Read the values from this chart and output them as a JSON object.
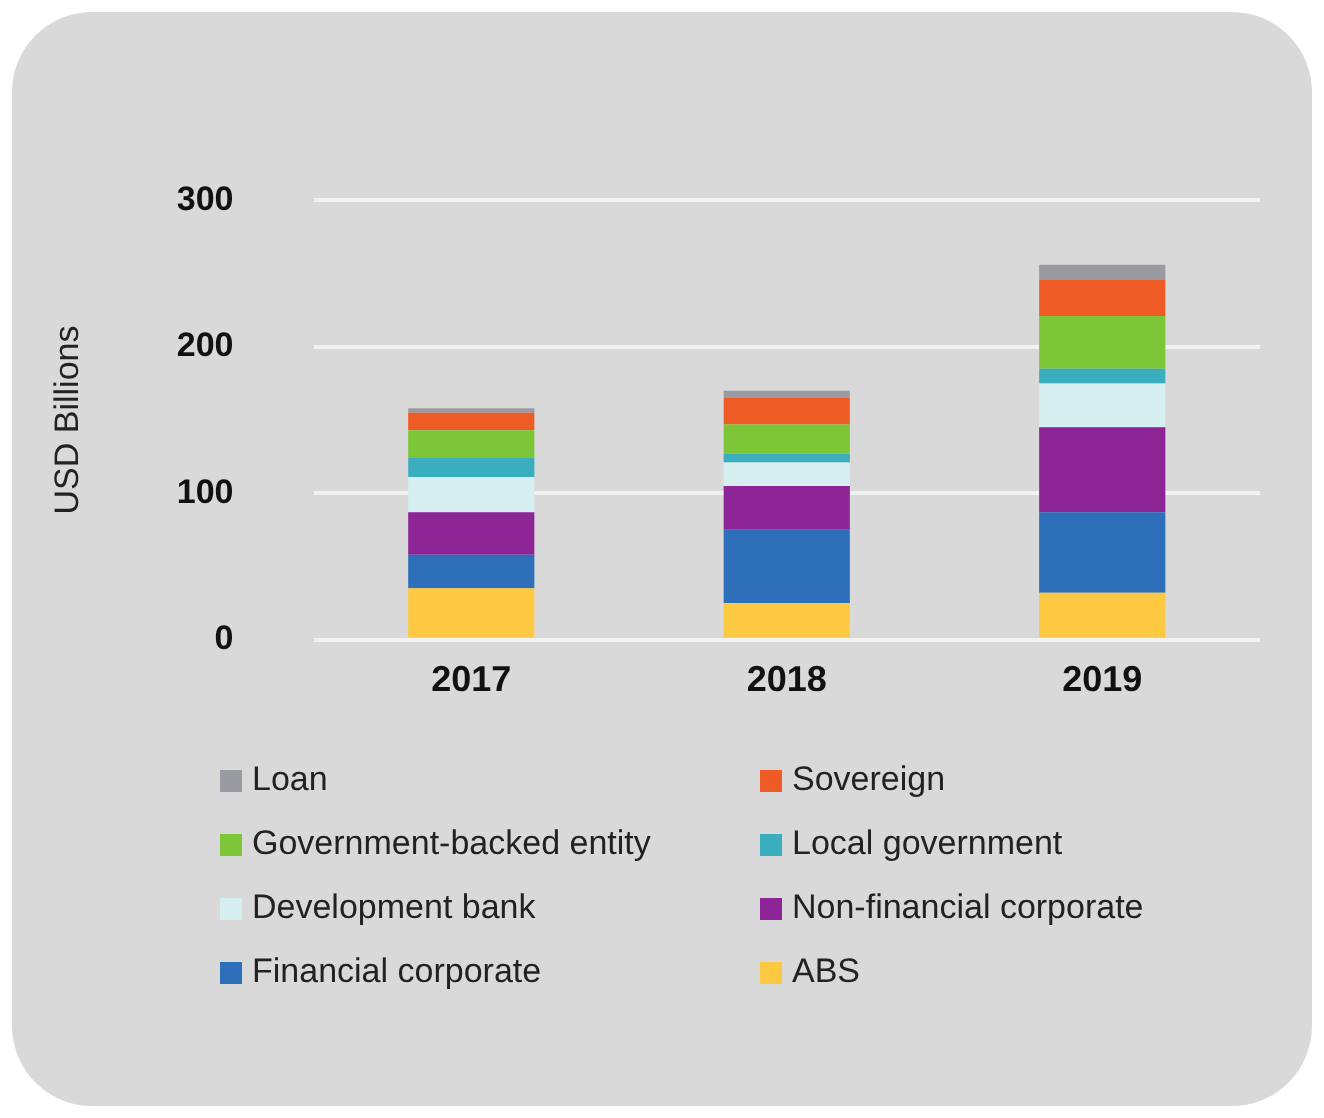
{
  "chart_data": {
    "type": "bar",
    "stacked": true,
    "ylabel": "USD Billions",
    "categories": [
      "2017",
      "2018",
      "2019"
    ],
    "ylim": [
      0,
      300
    ],
    "yticks": [
      0,
      100,
      200,
      300
    ],
    "grid": "y",
    "legend": "bottom",
    "series": [
      {
        "name": "ABS",
        "color": "#fdc842",
        "values": [
          35,
          25,
          32
        ]
      },
      {
        "name": "Financial corporate",
        "color": "#2e6fba",
        "values": [
          23,
          50,
          55
        ]
      },
      {
        "name": "Non-financial corporate",
        "color": "#8e2596",
        "values": [
          29,
          30,
          58
        ]
      },
      {
        "name": "Development bank",
        "color": "#d6eff0",
        "values": [
          24,
          16,
          30
        ]
      },
      {
        "name": "Local government",
        "color": "#3aaebf",
        "values": [
          13,
          6,
          10
        ]
      },
      {
        "name": "Government-backed entity",
        "color": "#7dc637",
        "values": [
          19,
          20,
          36
        ]
      },
      {
        "name": "Sovereign",
        "color": "#ef5b24",
        "values": [
          12,
          18,
          25
        ]
      },
      {
        "name": "Loan",
        "color": "#9a9aa3",
        "values": [
          3,
          5,
          10
        ]
      }
    ]
  }
}
